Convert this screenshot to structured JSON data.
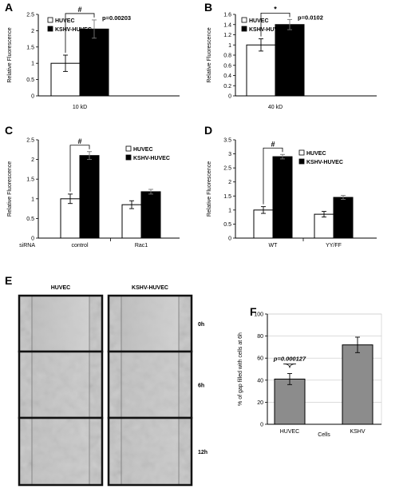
{
  "panels": [
    {
      "label": "A"
    },
    {
      "label": "B"
    },
    {
      "label": "C"
    },
    {
      "label": "D"
    },
    {
      "label": "E"
    },
    {
      "label": "F"
    }
  ],
  "micrograph": {
    "columns": [
      "HUVEC",
      "KSHV-HUVEC"
    ],
    "rows": [
      "0h",
      "6h",
      "12h"
    ]
  },
  "chart_data": [
    {
      "panel": "A",
      "type": "bar",
      "categories": [
        "10 kD"
      ],
      "series": [
        {
          "name": "HUVEC",
          "values": [
            1.0
          ],
          "errors": [
            0.25
          ],
          "color": "#ffffff"
        },
        {
          "name": "KSHV-HUVEC",
          "values": [
            2.05
          ],
          "errors": [
            0.28
          ],
          "color": "#000000"
        }
      ],
      "ylabel": "Relative Fluorescence",
      "xlabel": "",
      "ylim": [
        0,
        2.5
      ],
      "yticks": [
        "0",
        "0.5",
        "1",
        "1.5",
        "2",
        "2.5"
      ],
      "legend": "top-left",
      "annotations": [
        {
          "mark": "#",
          "text": "p=0.00203"
        }
      ]
    },
    {
      "panel": "B",
      "type": "bar",
      "categories": [
        "40 kD"
      ],
      "series": [
        {
          "name": "HUVEC",
          "values": [
            1.0
          ],
          "errors": [
            0.12
          ],
          "color": "#ffffff"
        },
        {
          "name": "KSHV-HUVEC",
          "values": [
            1.4
          ],
          "errors": [
            0.1
          ],
          "color": "#000000"
        }
      ],
      "ylabel": "Relative Fluorescence",
      "xlabel": "",
      "ylim": [
        0,
        1.6
      ],
      "yticks": [
        "0",
        "0.2",
        "0.4",
        "0.6",
        "0.8",
        "1",
        "1.2",
        "1.4",
        "1.6"
      ],
      "legend": "top-left",
      "annotations": [
        {
          "mark": "*",
          "text": "p=0.0102"
        }
      ]
    },
    {
      "panel": "C",
      "type": "bar",
      "categories": [
        "control",
        "Rac1"
      ],
      "category_axis_label": "siRNA",
      "series": [
        {
          "name": "HUVEC",
          "values": [
            1.0,
            0.85
          ],
          "errors": [
            0.12,
            0.1
          ],
          "color": "#ffffff"
        },
        {
          "name": "KSHV-HUVEC",
          "values": [
            2.1,
            1.18
          ],
          "errors": [
            0.1,
            0.06
          ],
          "color": "#000000"
        }
      ],
      "ylabel": "Relative Fluorescence",
      "xlabel": "",
      "ylim": [
        0,
        2.5
      ],
      "yticks": [
        "0",
        "0.5",
        "1",
        "1.5",
        "2",
        "2.5"
      ],
      "legend": "top-right",
      "annotations": [
        {
          "mark": "#",
          "text": ""
        }
      ]
    },
    {
      "panel": "D",
      "type": "bar",
      "categories": [
        "WT",
        "YY/FF"
      ],
      "series": [
        {
          "name": "HUVEC",
          "values": [
            1.0,
            0.85
          ],
          "errors": [
            0.12,
            0.1
          ],
          "color": "#ffffff"
        },
        {
          "name": "KSHV-HUVEC",
          "values": [
            2.9,
            1.45
          ],
          "errors": [
            0.08,
            0.07
          ],
          "color": "#000000"
        }
      ],
      "ylabel": "Relative Fluorescence",
      "xlabel": "",
      "ylim": [
        0,
        3.5
      ],
      "yticks": [
        "0",
        "0.5",
        "1",
        "1.5",
        "2",
        "2.5",
        "3",
        "3.5"
      ],
      "legend": "top-right",
      "annotations": [
        {
          "mark": "#",
          "text": ""
        }
      ]
    },
    {
      "panel": "F",
      "type": "bar",
      "categories": [
        "HUVEC",
        "KSHV"
      ],
      "series": [
        {
          "name": "",
          "values": [
            41,
            72
          ],
          "errors": [
            5,
            7
          ],
          "color": "#8c8c8c"
        }
      ],
      "ylabel": "% of gap filled with cells at 6h",
      "xlabel": "Cells",
      "ylim": [
        0,
        100
      ],
      "yticks": [
        "0",
        "20",
        "40",
        "60",
        "80",
        "100"
      ],
      "grid": true,
      "legend": "none",
      "annotations": [
        {
          "mark": "",
          "text": "p=0.000127"
        }
      ]
    }
  ]
}
